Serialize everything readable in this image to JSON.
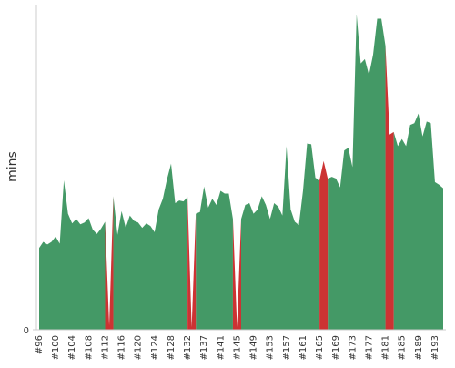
{
  "chart_data": {
    "type": "area",
    "y_label": "mins",
    "categories": [
      "#96",
      null,
      null,
      null,
      "#100",
      null,
      null,
      null,
      "#104",
      null,
      null,
      null,
      "#108",
      null,
      null,
      null,
      "#112",
      null,
      null,
      null,
      "#116",
      null,
      null,
      null,
      "#120",
      null,
      null,
      null,
      "#124",
      null,
      null,
      null,
      "#128",
      null,
      null,
      null,
      "#132",
      null,
      null,
      null,
      "#137",
      null,
      null,
      null,
      "#141",
      null,
      null,
      null,
      "#145",
      null,
      null,
      null,
      "#149",
      null,
      null,
      null,
      "#153",
      null,
      null,
      null,
      "#157",
      null,
      null,
      null,
      "#161",
      null,
      null,
      null,
      "#165",
      null,
      null,
      null,
      "#169",
      null,
      null,
      null,
      "#173",
      null,
      null,
      null,
      "#177",
      null,
      null,
      null,
      "#181",
      null,
      null,
      null,
      "#185",
      null,
      null,
      null,
      "#189",
      null,
      null,
      null,
      "#193",
      null,
      null
    ],
    "series": [
      {
        "color": "#449966",
        "values": [
          9.3,
          10.0,
          9.7,
          10.0,
          10.6,
          9.8,
          17.0,
          13.2,
          12.1,
          12.6,
          12.0,
          12.2,
          12.7,
          11.4,
          10.9,
          11.5,
          12.3,
          null,
          15.2,
          10.8,
          13.5,
          11.6,
          13.0,
          12.4,
          12.2,
          11.6,
          12.1,
          11.8,
          11.1,
          13.7,
          14.9,
          17.1,
          18.9,
          14.4,
          14.7,
          14.6,
          15.1,
          null,
          13.2,
          13.4,
          16.3,
          13.9,
          14.9,
          14.2,
          15.8,
          15.5,
          15.5,
          12.6,
          null,
          12.6,
          14.2,
          14.4,
          13.2,
          13.7,
          15.2,
          14.2,
          12.6,
          14.4,
          14.0,
          13.0,
          20.9,
          13.7,
          12.3,
          11.9,
          15.8,
          21.2,
          21.1,
          17.3,
          17.0,
          null,
          17.2,
          17.4,
          17.2,
          16.2,
          20.4,
          20.7,
          18.5,
          35.9,
          30.3,
          30.8,
          29.0,
          31.3,
          35.4,
          35.4,
          32.3,
          null,
          22.5,
          20.9,
          21.7,
          20.9,
          23.3,
          23.5,
          24.6,
          22.0,
          23.7,
          23.5,
          16.8,
          16.5,
          16.1
        ]
      },
      {
        "color": "#cc3333",
        "values": [
          null,
          null,
          null,
          null,
          null,
          null,
          null,
          null,
          null,
          null,
          null,
          null,
          null,
          null,
          null,
          null,
          null,
          0.5,
          null,
          null,
          null,
          null,
          null,
          null,
          null,
          null,
          null,
          null,
          null,
          null,
          null,
          null,
          null,
          null,
          null,
          null,
          null,
          0.3,
          null,
          null,
          null,
          null,
          null,
          null,
          null,
          null,
          null,
          null,
          0.3,
          null,
          null,
          null,
          null,
          null,
          null,
          null,
          null,
          null,
          null,
          null,
          null,
          null,
          null,
          null,
          null,
          null,
          null,
          null,
          null,
          19.2,
          null,
          null,
          null,
          null,
          null,
          null,
          null,
          null,
          null,
          null,
          null,
          null,
          null,
          null,
          null,
          22.2,
          null,
          null,
          null,
          null,
          null,
          null,
          null,
          null,
          null,
          null,
          null,
          null,
          null
        ]
      }
    ],
    "ylim": [
      0,
      37
    ],
    "yticks": [
      0
    ],
    "grid": false
  }
}
